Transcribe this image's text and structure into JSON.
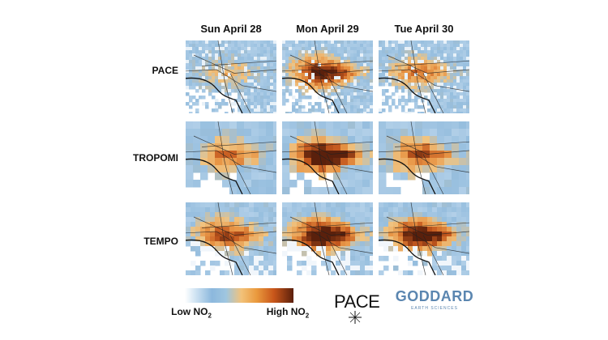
{
  "columns": [
    "Sun April 28",
    "Mon April 29",
    "Tue April 30"
  ],
  "rows": [
    "PACE",
    "TROPOMI",
    "TEMPO"
  ],
  "legend": {
    "low_text": "Low NO",
    "low_sub": "2",
    "high_text": "High NO",
    "high_sub": "2",
    "colors": [
      "#ffffff",
      "#8cb8dd",
      "#f2c27a",
      "#ea9a3e",
      "#c8561a",
      "#5a1f0c"
    ]
  },
  "logos": {
    "pace": "PACE",
    "goddard": "GODDARD",
    "goddard_sub": "EARTH SCIENCES"
  },
  "intensity": {
    "PACE": [
      0.25,
      0.75,
      0.45
    ],
    "TROPOMI": [
      0.45,
      0.95,
      0.6
    ],
    "TEMPO": [
      0.6,
      0.9,
      0.85
    ]
  }
}
